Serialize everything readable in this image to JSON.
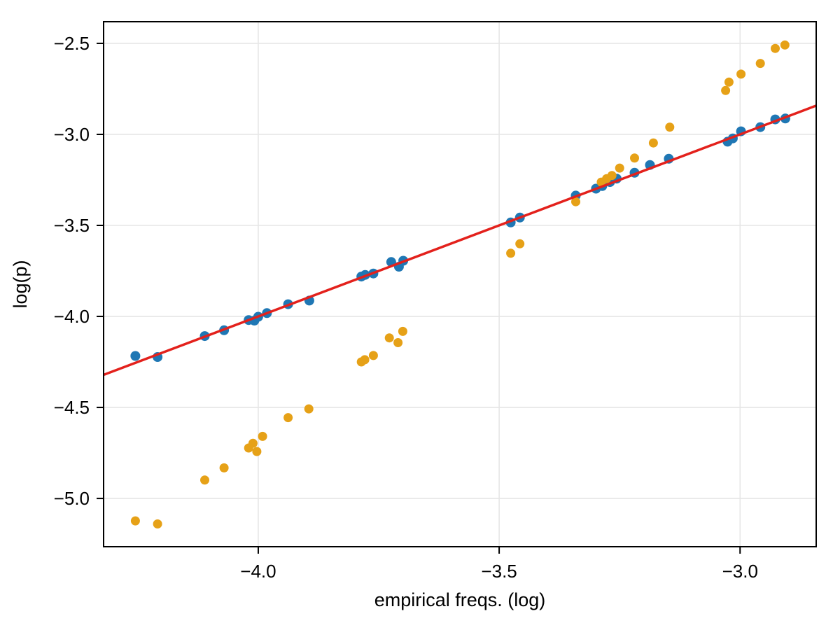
{
  "figure": {
    "title": "",
    "background": "#ffffff"
  },
  "chart_data": {
    "type": "scatter",
    "title": "",
    "xlabel": "empirical freqs. (log)",
    "ylabel": "log(p)",
    "xlim": [
      -4.321,
      -2.842
    ],
    "ylim": [
      -5.265,
      -2.381
    ],
    "grid": true,
    "legend_position": "none",
    "axis_color": "#000000",
    "grid_color": "#e6e6e6",
    "x_ticks": {
      "values": [
        -4.0,
        -3.5,
        -3.0
      ],
      "labels": [
        "−4.0",
        "−3.5",
        "−3.0"
      ]
    },
    "y_ticks": {
      "values": [
        -2.5,
        -3.0,
        -3.5,
        -4.0,
        -4.5,
        -5.0
      ],
      "labels": [
        "−2.5",
        "−3.0",
        "−3.5",
        "−4.0",
        "−4.5",
        "−5.0"
      ]
    },
    "reference_line": {
      "name": "identity-line",
      "color": "#e3211c",
      "width": 3.5,
      "x": [
        -4.321,
        -2.842
      ],
      "y": [
        -4.321,
        -2.842
      ]
    },
    "series": [
      {
        "name": "blue",
        "color": "#1f77b4",
        "marker": "circle",
        "marker_radius": 7,
        "points": [
          [
            -4.255,
            -4.217
          ],
          [
            -4.209,
            -4.223
          ],
          [
            -4.111,
            -4.108
          ],
          [
            -4.071,
            -4.076
          ],
          [
            -4.02,
            -4.02
          ],
          [
            -4.008,
            -4.023
          ],
          [
            -4.0,
            -4.002
          ],
          [
            -3.982,
            -3.982
          ],
          [
            -3.938,
            -3.933
          ],
          [
            -3.894,
            -3.913
          ],
          [
            -3.786,
            -3.781
          ],
          [
            -3.778,
            -3.772
          ],
          [
            -3.761,
            -3.764
          ],
          [
            -3.724,
            -3.701
          ],
          [
            -3.708,
            -3.727
          ],
          [
            -3.699,
            -3.694
          ],
          [
            -3.476,
            -3.484
          ],
          [
            -3.457,
            -3.457
          ],
          [
            -3.341,
            -3.336
          ],
          [
            -3.299,
            -3.298
          ],
          [
            -3.286,
            -3.284
          ],
          [
            -3.27,
            -3.262
          ],
          [
            -3.256,
            -3.243
          ],
          [
            -3.219,
            -3.211
          ],
          [
            -3.187,
            -3.168
          ],
          [
            -3.148,
            -3.134
          ],
          [
            -3.026,
            -3.04
          ],
          [
            -3.015,
            -3.022
          ],
          [
            -2.998,
            -2.983
          ],
          [
            -2.958,
            -2.96
          ],
          [
            -2.927,
            -2.918
          ],
          [
            -2.906,
            -2.913
          ]
        ]
      },
      {
        "name": "orange",
        "color": "#e6a117",
        "marker": "circle",
        "marker_radius": 6.5,
        "points": [
          [
            -4.255,
            -5.123
          ],
          [
            -4.209,
            -5.14
          ],
          [
            -4.111,
            -4.899
          ],
          [
            -4.071,
            -4.832
          ],
          [
            -4.02,
            -4.723
          ],
          [
            -4.011,
            -4.697
          ],
          [
            -4.003,
            -4.742
          ],
          [
            -3.991,
            -4.659
          ],
          [
            -3.938,
            -4.556
          ],
          [
            -3.895,
            -4.508
          ],
          [
            -3.786,
            -4.25
          ],
          [
            -3.779,
            -4.238
          ],
          [
            -3.761,
            -4.215
          ],
          [
            -3.728,
            -4.118
          ],
          [
            -3.71,
            -4.144
          ],
          [
            -3.7,
            -4.082
          ],
          [
            -3.476,
            -3.653
          ],
          [
            -3.457,
            -3.601
          ],
          [
            -3.341,
            -3.37
          ],
          [
            -3.288,
            -3.262
          ],
          [
            -3.277,
            -3.243
          ],
          [
            -3.266,
            -3.226
          ],
          [
            -3.25,
            -3.185
          ],
          [
            -3.219,
            -3.13
          ],
          [
            -3.18,
            -3.047
          ],
          [
            -3.146,
            -2.96
          ],
          [
            -3.03,
            -2.759
          ],
          [
            -3.023,
            -2.713
          ],
          [
            -2.998,
            -2.669
          ],
          [
            -2.958,
            -2.61
          ],
          [
            -2.927,
            -2.528
          ],
          [
            -2.907,
            -2.509
          ]
        ]
      }
    ]
  }
}
